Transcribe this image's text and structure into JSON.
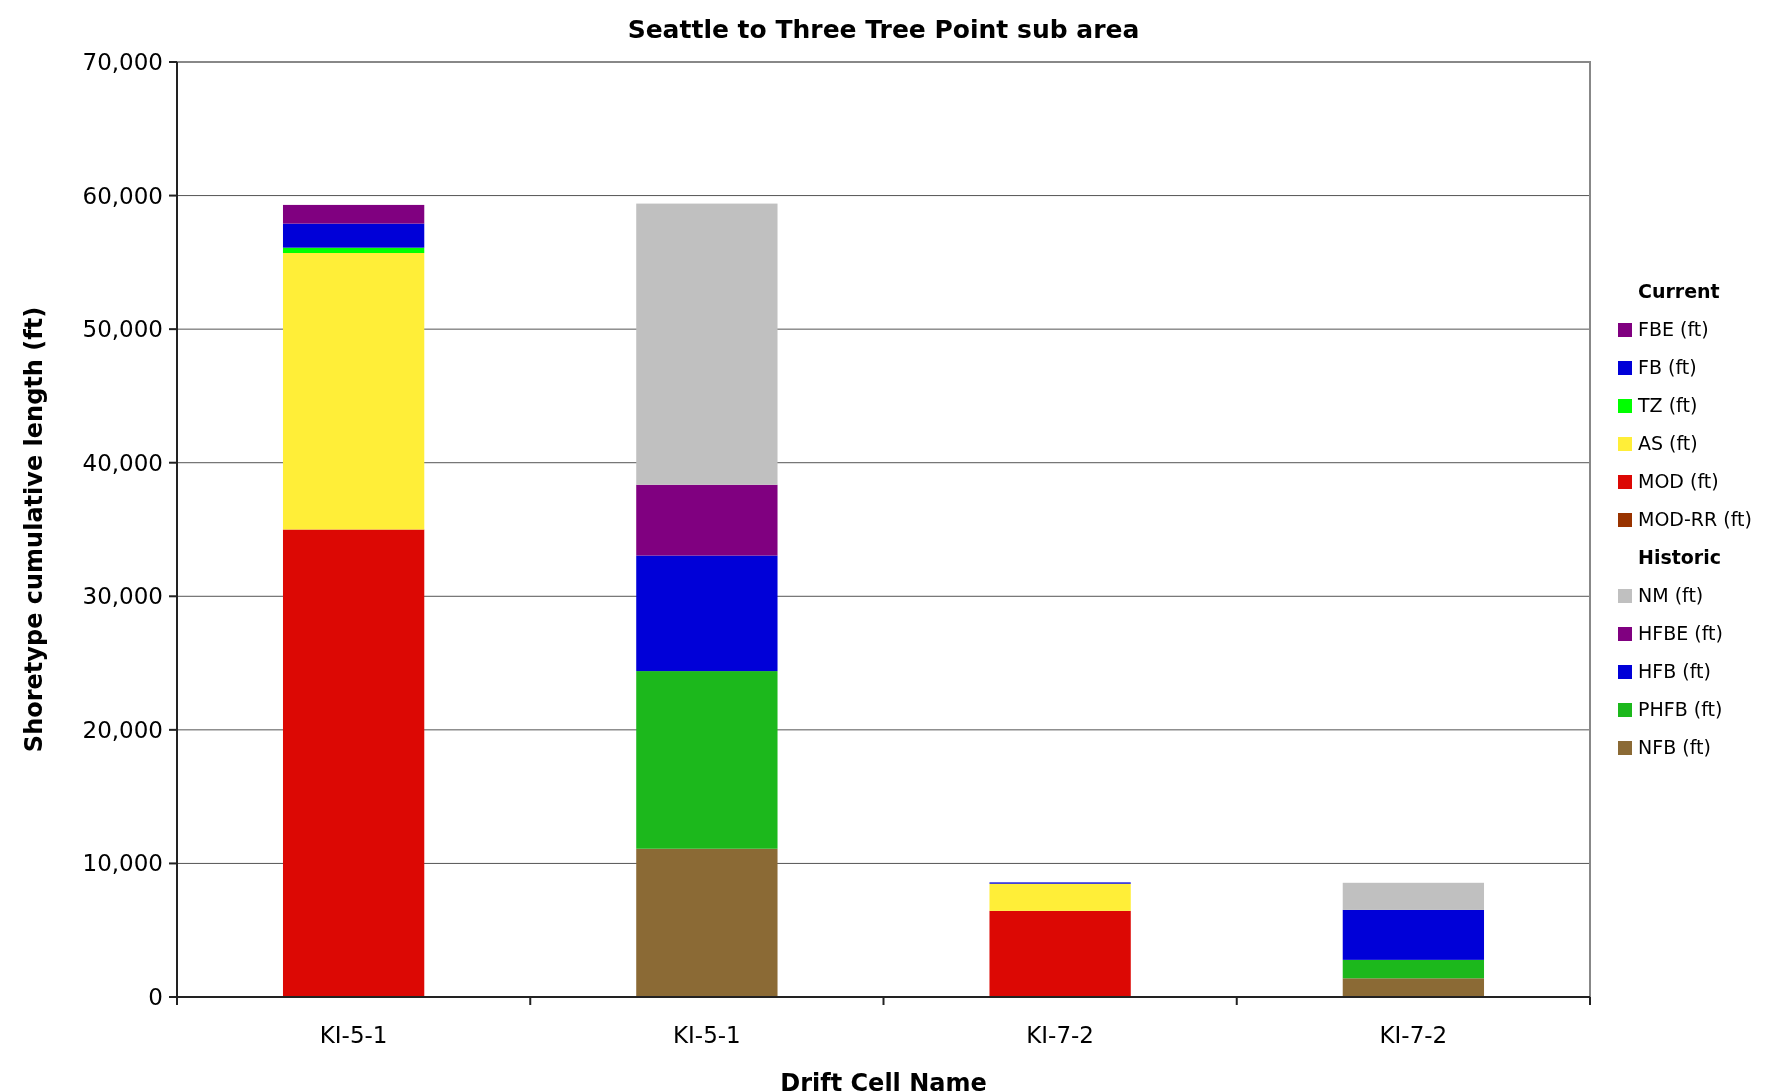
{
  "chart_data": {
    "type": "bar",
    "title": "Seattle to Three Tree Point sub area",
    "xlabel": "Drift Cell Name",
    "ylabel": "Shoretype cumulative length (ft)",
    "categories": [
      "KI-5-1",
      "KI-5-1",
      "KI-7-2",
      "KI-7-2"
    ],
    "stacked": true,
    "ylim": [
      0,
      70000
    ],
    "yticks": [
      {
        "value": 0,
        "label": "0"
      },
      {
        "value": 10000,
        "label": "10,000"
      },
      {
        "value": 20000,
        "label": "20,000"
      },
      {
        "value": 30000,
        "label": "30,000"
      },
      {
        "value": 40000,
        "label": "40,000"
      },
      {
        "value": 50000,
        "label": "50,000"
      },
      {
        "value": 60000,
        "label": "60,000"
      },
      {
        "value": 70000,
        "label": "70,000"
      }
    ],
    "grid": "y",
    "legend": "right",
    "annotations": [
      "Current",
      "Historic"
    ],
    "series": [
      {
        "name": "MOD-RR (ft)",
        "color": "#993300",
        "values": [
          null,
          null,
          null,
          null
        ]
      },
      {
        "name": "MOD (ft)",
        "color": "#dc0804",
        "values": [
          35000,
          null,
          6450,
          null
        ]
      },
      {
        "name": "AS (ft)",
        "color": "#ffee38",
        "values": [
          20700,
          null,
          2030,
          null
        ]
      },
      {
        "name": "TZ (ft)",
        "color": "#00ff00",
        "values": [
          400,
          null,
          null,
          null
        ]
      },
      {
        "name": "FB (ft)",
        "color": "#0000d8",
        "values": [
          1800,
          null,
          100,
          null
        ]
      },
      {
        "name": "FBE (ft)",
        "color": "#800080",
        "values": [
          1400,
          null,
          null,
          null
        ]
      },
      {
        "name": "NFB (ft)",
        "color": "#8b6a35",
        "values": [
          null,
          11100,
          null,
          1400
        ]
      },
      {
        "name": "PHFB (ft)",
        "color": "#1cb81c",
        "values": [
          null,
          13300,
          null,
          1380
        ]
      },
      {
        "name": "HFB (ft)",
        "color": "#0000d8",
        "values": [
          null,
          8650,
          null,
          3740
        ]
      },
      {
        "name": "HFBE (ft)",
        "color": "#800080",
        "values": [
          null,
          5300,
          null,
          null
        ]
      },
      {
        "name": "NM (ft)",
        "color": "#c0c0c0",
        "values": [
          null,
          21050,
          null,
          2030
        ]
      }
    ]
  }
}
